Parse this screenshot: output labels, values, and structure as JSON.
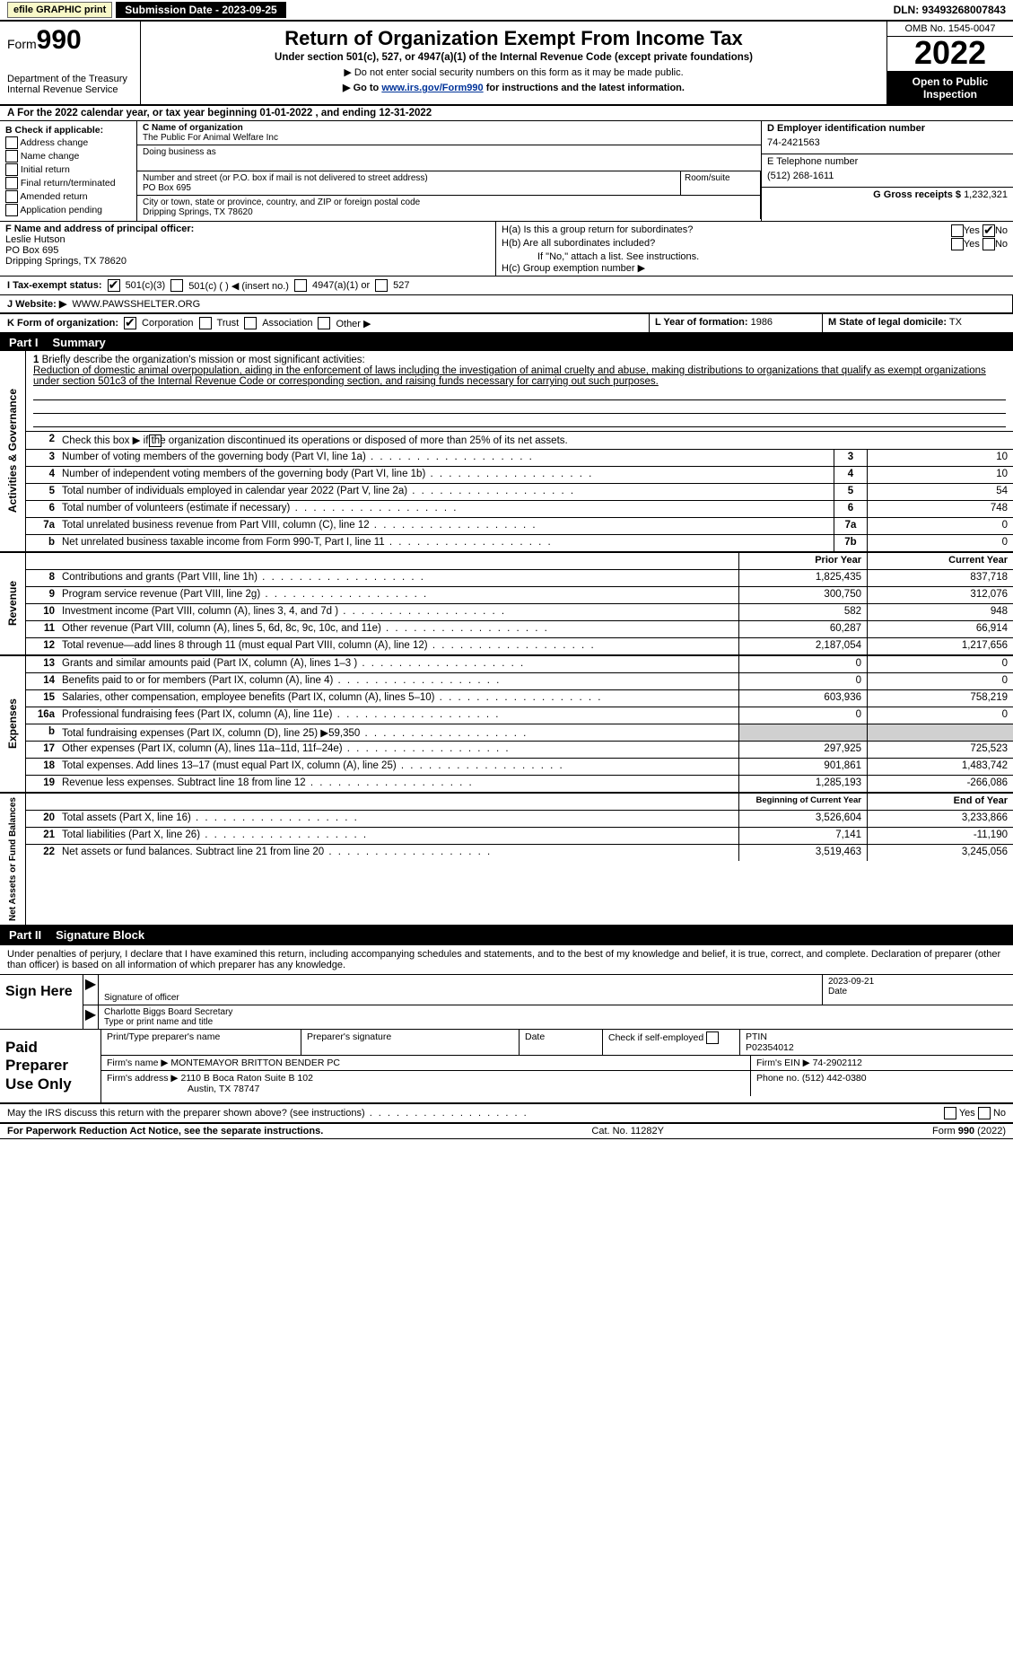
{
  "topbar": {
    "efile": "efile GRAPHIC print",
    "submission": "Submission Date - 2023-09-25",
    "dln": "DLN: 93493268007843"
  },
  "header": {
    "form_word": "Form",
    "form_num": "990",
    "dept": "Department of the Treasury",
    "irs": "Internal Revenue Service",
    "title": "Return of Organization Exempt From Income Tax",
    "sub": "Under section 501(c), 527, or 4947(a)(1) of the Internal Revenue Code (except private foundations)",
    "ssn": "▶ Do not enter social security numbers on this form as it may be made public.",
    "goto_pre": "▶ Go to ",
    "goto_link": "www.irs.gov/Form990",
    "goto_post": " for instructions and the latest information.",
    "omb": "OMB No. 1545-0047",
    "year": "2022",
    "open": "Open to Public Inspection"
  },
  "a": "A For the 2022 calendar year, or tax year beginning 01-01-2022    , and ending 12-31-2022",
  "b": {
    "title": "B Check if applicable:",
    "items": [
      "Address change",
      "Name change",
      "Initial return",
      "Final return/terminated",
      "Amended return",
      "Application pending"
    ]
  },
  "c": {
    "label": "C Name of organization",
    "name": "The Public For Animal Welfare Inc",
    "dba": "Doing business as",
    "addr_label": "Number and street (or P.O. box if mail is not delivered to street address)",
    "room": "Room/suite",
    "addr": "PO Box 695",
    "city_label": "City or town, state or province, country, and ZIP or foreign postal code",
    "city": "Dripping Springs, TX  78620"
  },
  "d": {
    "label": "D Employer identification number",
    "ein": "74-2421563"
  },
  "e": {
    "label": "E Telephone number",
    "tel": "(512) 268-1611"
  },
  "g": {
    "label": "G Gross receipts $",
    "val": "1,232,321"
  },
  "f": {
    "label": "F Name and address of principal officer:",
    "name": "Leslie Hutson",
    "addr1": "PO Box 695",
    "addr2": "Dripping Springs, TX  78620"
  },
  "h": {
    "a": "H(a)  Is this a group return for subordinates?",
    "b": "H(b)  Are all subordinates included?",
    "bnote": "If \"No,\" attach a list. See instructions.",
    "c": "H(c)  Group exemption number ▶",
    "yes": "Yes",
    "no": "No"
  },
  "i": {
    "label": "I  Tax-exempt status:",
    "o1": "501(c)(3)",
    "o2": "501(c) (   ) ◀ (insert no.)",
    "o3": "4947(a)(1) or",
    "o4": "527"
  },
  "j": {
    "label": "J  Website: ▶",
    "val": "WWW.PAWSSHELTER.ORG"
  },
  "k": {
    "label": "K Form of organization:",
    "o1": "Corporation",
    "o2": "Trust",
    "o3": "Association",
    "o4": "Other ▶"
  },
  "l": {
    "label": "L Year of formation:",
    "val": "1986"
  },
  "m": {
    "label": "M State of legal domicile:",
    "val": "TX"
  },
  "part1": {
    "title": "Part I",
    "name": "Summary"
  },
  "mission": {
    "num": "1",
    "label": "Briefly describe the organization's mission or most significant activities:",
    "text": "Reduction of domestic animal overpopulation, aiding in the enforcement of laws including the investigation of animal cruelty and abuse, making distributions to organizations that qualify as exempt organizations under section 501c3 of the Internal Revenue Code or corresponding section, and raising funds necessary for carrying out such purposes."
  },
  "gov": {
    "label": "Activities & Governance",
    "l2": "Check this box ▶        if the organization discontinued its operations or disposed of more than 25% of its net assets.",
    "rows": [
      {
        "n": "3",
        "d": "Number of voting members of the governing body (Part VI, line 1a)",
        "box": "3",
        "v": "10"
      },
      {
        "n": "4",
        "d": "Number of independent voting members of the governing body (Part VI, line 1b)",
        "box": "4",
        "v": "10"
      },
      {
        "n": "5",
        "d": "Total number of individuals employed in calendar year 2022 (Part V, line 2a)",
        "box": "5",
        "v": "54"
      },
      {
        "n": "6",
        "d": "Total number of volunteers (estimate if necessary)",
        "box": "6",
        "v": "748"
      },
      {
        "n": "7a",
        "d": "Total unrelated business revenue from Part VIII, column (C), line 12",
        "box": "7a",
        "v": "0"
      },
      {
        "n": "b",
        "d": "Net unrelated business taxable income from Form 990-T, Part I, line 11",
        "box": "7b",
        "v": "0"
      }
    ]
  },
  "cols": {
    "prior": "Prior Year",
    "current": "Current Year",
    "boy": "Beginning of Current Year",
    "eoy": "End of Year"
  },
  "rev": {
    "label": "Revenue",
    "rows": [
      {
        "n": "8",
        "d": "Contributions and grants (Part VIII, line 1h)",
        "p": "1,825,435",
        "c": "837,718"
      },
      {
        "n": "9",
        "d": "Program service revenue (Part VIII, line 2g)",
        "p": "300,750",
        "c": "312,076"
      },
      {
        "n": "10",
        "d": "Investment income (Part VIII, column (A), lines 3, 4, and 7d )",
        "p": "582",
        "c": "948"
      },
      {
        "n": "11",
        "d": "Other revenue (Part VIII, column (A), lines 5, 6d, 8c, 9c, 10c, and 11e)",
        "p": "60,287",
        "c": "66,914"
      },
      {
        "n": "12",
        "d": "Total revenue—add lines 8 through 11 (must equal Part VIII, column (A), line 12)",
        "p": "2,187,054",
        "c": "1,217,656"
      }
    ]
  },
  "exp": {
    "label": "Expenses",
    "rows": [
      {
        "n": "13",
        "d": "Grants and similar amounts paid (Part IX, column (A), lines 1–3 )",
        "p": "0",
        "c": "0"
      },
      {
        "n": "14",
        "d": "Benefits paid to or for members (Part IX, column (A), line 4)",
        "p": "0",
        "c": "0"
      },
      {
        "n": "15",
        "d": "Salaries, other compensation, employee benefits (Part IX, column (A), lines 5–10)",
        "p": "603,936",
        "c": "758,219"
      },
      {
        "n": "16a",
        "d": "Professional fundraising fees (Part IX, column (A), line 11e)",
        "p": "0",
        "c": "0"
      },
      {
        "n": "b",
        "d": "Total fundraising expenses (Part IX, column (D), line 25) ▶59,350",
        "p": "",
        "c": "",
        "shade": true
      },
      {
        "n": "17",
        "d": "Other expenses (Part IX, column (A), lines 11a–11d, 11f–24e)",
        "p": "297,925",
        "c": "725,523"
      },
      {
        "n": "18",
        "d": "Total expenses. Add lines 13–17 (must equal Part IX, column (A), line 25)",
        "p": "901,861",
        "c": "1,483,742"
      },
      {
        "n": "19",
        "d": "Revenue less expenses. Subtract line 18 from line 12",
        "p": "1,285,193",
        "c": "-266,086"
      }
    ]
  },
  "net": {
    "label": "Net Assets or Fund Balances",
    "rows": [
      {
        "n": "20",
        "d": "Total assets (Part X, line 16)",
        "p": "3,526,604",
        "c": "3,233,866"
      },
      {
        "n": "21",
        "d": "Total liabilities (Part X, line 26)",
        "p": "7,141",
        "c": "-11,190"
      },
      {
        "n": "22",
        "d": "Net assets or fund balances. Subtract line 21 from line 20",
        "p": "3,519,463",
        "c": "3,245,056"
      }
    ]
  },
  "part2": {
    "title": "Part II",
    "name": "Signature Block"
  },
  "sig": {
    "penalty": "Under penalties of perjury, I declare that I have examined this return, including accompanying schedules and statements, and to the best of my knowledge and belief, it is true, correct, and complete. Declaration of preparer (other than officer) is based on all information of which preparer has any knowledge.",
    "sign": "Sign Here",
    "sig_label": "Signature of officer",
    "date_label": "Date",
    "date": "2023-09-21",
    "name": "Charlotte Biggs  Board Secretary",
    "name_label": "Type or print name and title"
  },
  "paid": {
    "label": "Paid Preparer Use Only",
    "h1": "Print/Type preparer's name",
    "h2": "Preparer's signature",
    "h3": "Date",
    "h4": "Check          if self-employed",
    "h5": "PTIN",
    "ptin": "P02354012",
    "firm_label": "Firm's name    ▶",
    "firm": "MONTEMAYOR BRITTON BENDER PC",
    "ein_label": "Firm's EIN ▶",
    "ein": "74-2902112",
    "addr_label": "Firm's address ▶",
    "addr1": "2110 B Boca Raton Suite B 102",
    "addr2": "Austin, TX  78747",
    "phone_label": "Phone no.",
    "phone": "(512) 442-0380"
  },
  "discuss": "May the IRS discuss this return with the preparer shown above? (see instructions)",
  "footer": {
    "left": "For Paperwork Reduction Act Notice, see the separate instructions.",
    "mid": "Cat. No. 11282Y",
    "right": "Form 990 (2022)"
  }
}
